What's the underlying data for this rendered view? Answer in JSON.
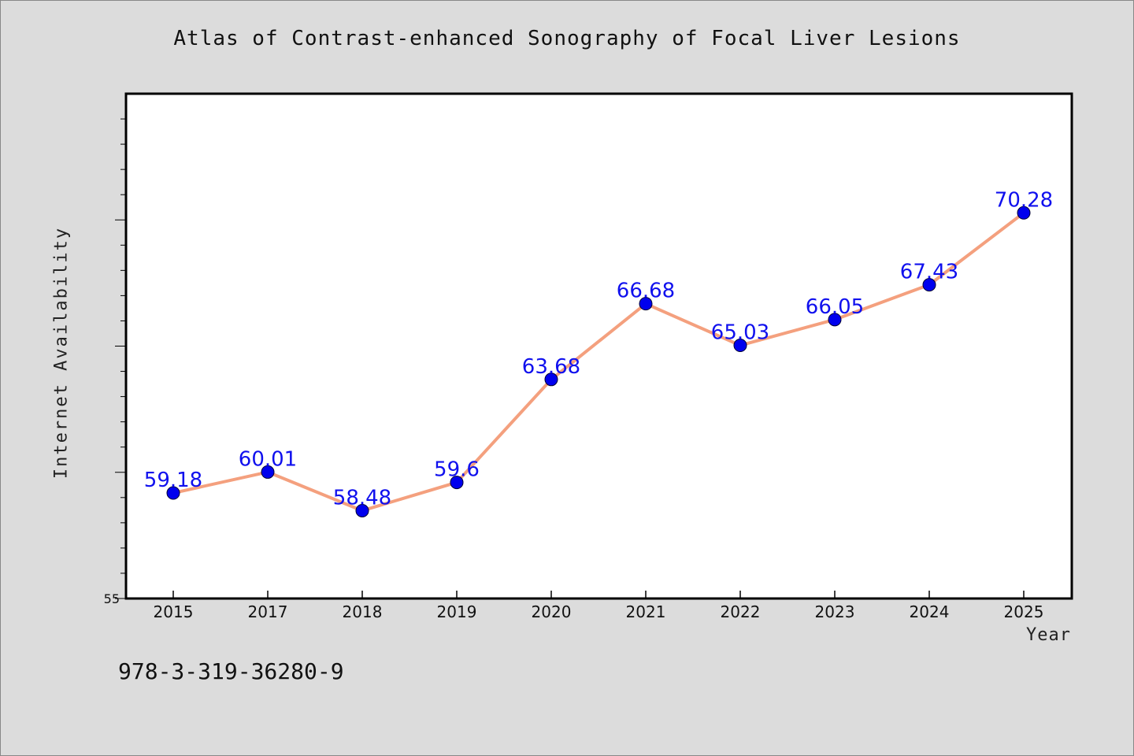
{
  "chart_data": {
    "type": "line",
    "title": "Atlas of Contrast-enhanced Sonography of Focal Liver Lesions",
    "xlabel": "Year",
    "ylabel": "Internet Availability",
    "categories": [
      "2015",
      "2017",
      "2018",
      "2019",
      "2020",
      "2021",
      "2022",
      "2023",
      "2024",
      "2025"
    ],
    "series": [
      {
        "values": [
          59.18,
          60.01,
          58.48,
          59.6,
          63.68,
          66.68,
          65.03,
          66.05,
          67.43,
          70.28
        ],
        "labels": [
          "59.18",
          "60.01",
          "58.48",
          "59.6",
          "63.68",
          "66.68",
          "65.03",
          "66.05",
          "67.43",
          "70.28"
        ]
      }
    ],
    "ylim": [
      55,
      75
    ],
    "y_tick_labels": [
      "55"
    ],
    "grid": false,
    "colors": {
      "line": "#f4a07e",
      "marker": "#0000ee",
      "data_label": "#1010ee"
    }
  },
  "annotation": "978-3-319-36280-9"
}
